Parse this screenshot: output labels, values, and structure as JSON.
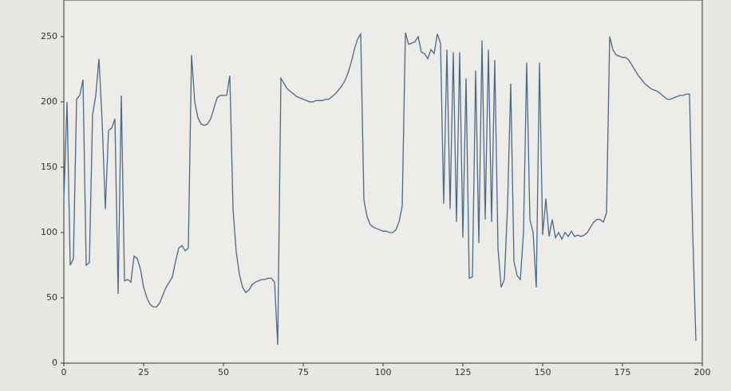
{
  "chart_data": {
    "type": "line",
    "x": [
      0,
      1,
      2,
      3,
      4,
      5,
      6,
      7,
      8,
      9,
      10,
      11,
      12,
      13,
      14,
      15,
      16,
      17,
      18,
      19,
      20,
      21,
      22,
      23,
      24,
      25,
      26,
      27,
      28,
      29,
      30,
      31,
      32,
      33,
      34,
      35,
      36,
      37,
      38,
      39,
      40,
      41,
      42,
      43,
      44,
      45,
      46,
      47,
      48,
      49,
      50,
      51,
      52,
      53,
      54,
      55,
      56,
      57,
      58,
      59,
      60,
      61,
      62,
      63,
      64,
      65,
      66,
      67,
      68,
      69,
      70,
      71,
      72,
      73,
      74,
      75,
      76,
      77,
      78,
      79,
      80,
      81,
      82,
      83,
      84,
      85,
      86,
      87,
      88,
      89,
      90,
      91,
      92,
      93,
      94,
      95,
      96,
      97,
      98,
      99,
      100,
      101,
      102,
      103,
      104,
      105,
      106,
      107,
      108,
      109,
      110,
      111,
      112,
      113,
      114,
      115,
      116,
      117,
      118,
      119,
      120,
      121,
      122,
      123,
      124,
      125,
      126,
      127,
      128,
      129,
      130,
      131,
      132,
      133,
      134,
      135,
      136,
      137,
      138,
      139,
      140,
      141,
      142,
      143,
      144,
      145,
      146,
      147,
      148,
      149,
      150,
      151,
      152,
      153,
      154,
      155,
      156,
      157,
      158,
      159,
      160,
      161,
      162,
      163,
      164,
      165,
      166,
      167,
      168,
      169,
      170,
      171,
      172,
      173,
      174,
      175,
      176,
      177,
      178,
      179,
      180,
      181,
      182,
      183,
      184,
      185,
      186,
      187,
      188,
      189,
      190,
      191,
      192,
      193,
      194,
      195,
      196,
      197,
      198
    ],
    "series": [
      {
        "color": "#4a6888",
        "values": [
          125,
          200,
          75,
          80,
          202,
          205,
          217,
          75,
          77,
          190,
          205,
          233,
          185,
          118,
          178,
          180,
          187,
          53,
          205,
          63,
          64,
          62,
          82,
          80,
          72,
          58,
          50,
          45,
          43,
          43,
          46,
          52,
          58,
          62,
          66,
          78,
          88,
          90,
          86,
          88,
          236,
          200,
          188,
          183,
          182,
          183,
          187,
          195,
          203,
          205,
          205,
          205,
          220,
          118,
          85,
          68,
          58,
          54,
          56,
          60,
          62,
          63,
          64,
          64,
          65,
          65,
          62,
          14,
          218,
          214,
          210,
          208,
          206,
          204,
          203,
          202,
          201,
          200,
          200,
          201,
          201,
          201,
          202,
          202,
          204,
          206,
          209,
          212,
          216,
          222,
          230,
          240,
          248,
          252,
          125,
          112,
          106,
          104,
          103,
          102,
          101,
          101,
          100,
          100,
          102,
          108,
          120,
          253,
          244,
          245,
          246,
          250,
          238,
          237,
          233,
          240,
          237,
          252,
          245,
          122,
          240,
          118,
          238,
          108,
          238,
          96,
          218,
          65,
          66,
          224,
          92,
          247,
          110,
          240,
          108,
          232,
          88,
          58,
          64,
          120,
          214,
          78,
          67,
          64,
          100,
          230,
          110,
          100,
          58,
          230,
          98,
          126,
          97,
          110,
          96,
          100,
          95,
          100,
          97,
          101,
          97,
          98,
          97,
          98,
          100,
          104,
          108,
          110,
          110,
          108,
          115,
          250,
          240,
          236,
          235,
          234,
          234,
          232,
          228,
          224,
          220,
          217,
          214,
          212,
          210,
          209,
          208,
          206,
          204,
          202,
          202,
          203,
          204,
          205,
          205,
          206,
          206,
          100,
          17
        ]
      }
    ],
    "xlim": [
      0,
      200
    ],
    "ylim": [
      0,
      278
    ],
    "xticks": [
      0,
      25,
      50,
      75,
      100,
      125,
      150,
      175,
      200
    ],
    "yticks": [
      0,
      50,
      100,
      150,
      200,
      250
    ]
  }
}
